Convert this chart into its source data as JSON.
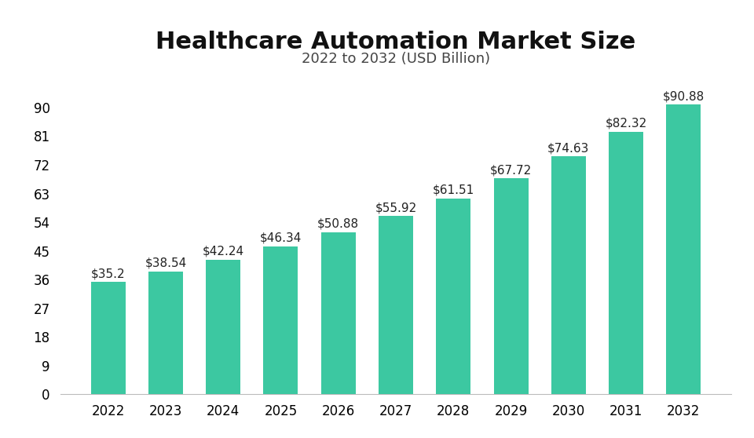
{
  "title": "Healthcare Automation Market Size",
  "subtitle": "2022 to 2032 (USD Billion)",
  "years": [
    2022,
    2023,
    2024,
    2025,
    2026,
    2027,
    2028,
    2029,
    2030,
    2031,
    2032
  ],
  "values": [
    35.2,
    38.54,
    42.24,
    46.34,
    50.88,
    55.92,
    61.51,
    67.72,
    74.63,
    82.32,
    90.88
  ],
  "labels": [
    "$35.2",
    "$38.54",
    "$42.24",
    "$46.34",
    "$50.88",
    "$55.92",
    "$61.51",
    "$67.72",
    "$74.63",
    "$82.32",
    "$90.88"
  ],
  "bar_color": "#3CC8A1",
  "background_color": "#ffffff",
  "title_fontsize": 22,
  "subtitle_fontsize": 13,
  "label_fontsize": 11,
  "tick_fontsize": 12,
  "yticks": [
    0,
    9,
    18,
    27,
    36,
    45,
    54,
    63,
    72,
    81,
    90
  ],
  "ylim": [
    0,
    99
  ],
  "bar_width": 0.6
}
